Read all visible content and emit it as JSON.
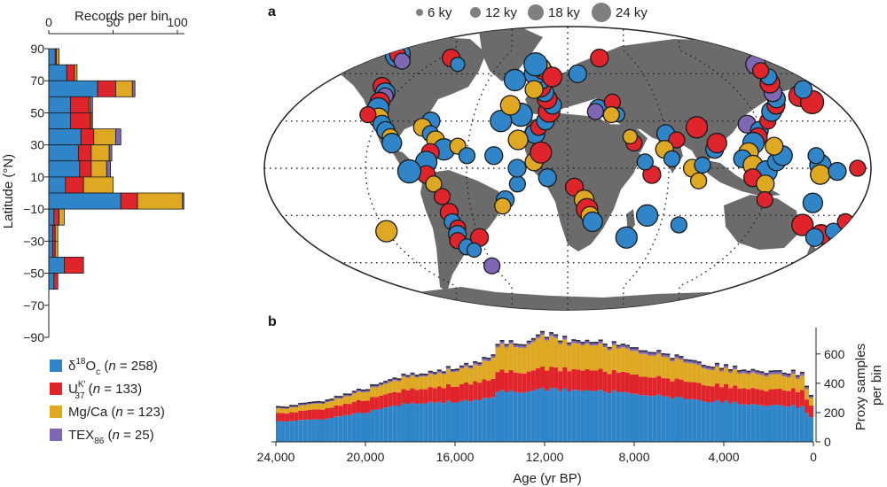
{
  "colors": {
    "d18O": "#2f85c8",
    "uk37": "#e0242b",
    "mgca": "#dfa822",
    "tex86": "#7f67b3",
    "land": "#6b6b6b"
  },
  "map_panel": {
    "label": "a",
    "size_legend": [
      {
        "label": "6 ky"
      },
      {
        "label": "12 ky"
      },
      {
        "label": "18 ky"
      },
      {
        "label": "24 ky"
      }
    ]
  },
  "ts_panel": {
    "label": "b"
  },
  "legend": [
    {
      "proxy": "d18O",
      "sym": "δ",
      "sup": "18",
      "main": "O",
      "sub": "c",
      "n": "258"
    },
    {
      "proxy": "uk37",
      "sym": "",
      "sup": "K′",
      "main": "U",
      "sub": "37",
      "n": "133"
    },
    {
      "proxy": "mgca",
      "sym": "",
      "sup": "",
      "main": "Mg/Ca",
      "sub": "",
      "n": "123"
    },
    {
      "proxy": "tex86",
      "sym": "",
      "sup": "",
      "main": "TEX",
      "sub": "86",
      "n": "25"
    }
  ],
  "legend_n_prefix": "n",
  "chart_data": [
    {
      "type": "bar",
      "orientation": "horizontal-stacked",
      "title": "",
      "xlabel": "Records per bin",
      "ylabel": "Latitude (°N)",
      "xlim": [
        0,
        105
      ],
      "xticks": [
        0,
        50,
        100
      ],
      "ylim": [
        -90,
        90
      ],
      "yticks": [
        90,
        70,
        50,
        30,
        10,
        -10,
        -30,
        -50,
        -70,
        -90
      ],
      "bin_lows": [
        80,
        70,
        60,
        50,
        40,
        30,
        20,
        10,
        0,
        -10,
        -20,
        -30,
        -40,
        -50,
        -60,
        -70,
        -80,
        -90
      ],
      "series": [
        {
          "name": "d18O",
          "values": [
            5,
            14,
            38,
            17,
            17,
            25,
            23,
            24,
            13,
            56,
            4,
            3,
            3,
            12,
            4,
            0,
            0,
            0
          ]
        },
        {
          "name": "uk37",
          "values": [
            1,
            6,
            14,
            14,
            15,
            10,
            10,
            9,
            14,
            13,
            4,
            2,
            2,
            15,
            3,
            0,
            0,
            0
          ]
        },
        {
          "name": "mgca",
          "values": [
            2,
            2,
            13,
            1,
            1,
            17,
            14,
            12,
            23,
            35,
            4,
            2,
            2,
            0,
            0,
            0,
            0,
            0
          ]
        },
        {
          "name": "tex86",
          "values": [
            0,
            0,
            2,
            2,
            1,
            4,
            2,
            3,
            0,
            1,
            0,
            0,
            0,
            0,
            0,
            0,
            0,
            0
          ]
        }
      ]
    },
    {
      "type": "area",
      "stacked": true,
      "title": "",
      "xlabel": "Age (yr BP)",
      "ylabel": "Proxy samples per bin",
      "xlim": [
        24000,
        0
      ],
      "xticks": [
        "24,000",
        "20,000",
        "16,000",
        "12,000",
        "8,000",
        "4,000",
        "0"
      ],
      "ylim": [
        0,
        780
      ],
      "yticks": [
        0,
        200,
        400,
        600
      ],
      "ages": [
        24000,
        23000,
        22000,
        21000,
        20000,
        19000,
        18000,
        17000,
        16000,
        15000,
        14500,
        14000,
        13000,
        12000,
        11000,
        10000,
        9000,
        8000,
        7000,
        6000,
        5000,
        4000,
        3000,
        2000,
        1000,
        500,
        0
      ],
      "series": [
        {
          "name": "d18O",
          "values": [
            140,
            145,
            155,
            180,
            200,
            240,
            260,
            270,
            275,
            280,
            305,
            340,
            340,
            360,
            355,
            345,
            340,
            325,
            315,
            300,
            285,
            275,
            260,
            245,
            245,
            240,
            150
          ]
        },
        {
          "name": "uk37",
          "values": [
            55,
            60,
            70,
            75,
            85,
            90,
            95,
            100,
            110,
            120,
            125,
            135,
            135,
            140,
            140,
            140,
            135,
            130,
            125,
            120,
            115,
            110,
            110,
            105,
            110,
            110,
            70
          ]
        },
        {
          "name": "mgca",
          "values": [
            30,
            35,
            40,
            50,
            60,
            75,
            85,
            90,
            105,
            110,
            135,
            170,
            175,
            215,
            180,
            170,
            165,
            160,
            150,
            135,
            120,
            110,
            105,
            100,
            95,
            95,
            40
          ]
        },
        {
          "name": "tex86",
          "values": [
            10,
            12,
            12,
            14,
            15,
            15,
            15,
            15,
            15,
            18,
            20,
            20,
            20,
            20,
            20,
            20,
            20,
            20,
            20,
            20,
            20,
            20,
            20,
            20,
            22,
            22,
            15
          ]
        }
      ]
    },
    {
      "type": "scatter",
      "projection": "robinson",
      "title": "",
      "marker_size": "record length (ky)",
      "markers": [
        [
          72,
          -168,
          "d18O",
          22
        ],
        [
          72,
          -168,
          "uk37",
          12
        ],
        [
          68,
          -150,
          "tex86",
          12
        ],
        [
          70,
          -110,
          "uk37",
          14
        ],
        [
          66,
          -96,
          "d18O",
          10
        ],
        [
          52,
          -135,
          "uk37",
          14
        ],
        [
          48,
          -128,
          "d18O",
          16
        ],
        [
          46,
          -126,
          "tex86",
          12
        ],
        [
          42,
          -126,
          "uk37",
          16
        ],
        [
          38,
          -124,
          "d18O",
          18
        ],
        [
          32,
          -120,
          "mgca",
          16
        ],
        [
          28,
          -116,
          "d18O",
          14
        ],
        [
          34,
          -128,
          "uk37",
          12
        ],
        [
          24,
          -112,
          "d18O",
          14
        ],
        [
          20,
          -108,
          "mgca",
          12
        ],
        [
          16,
          -106,
          "d18O",
          16
        ],
        [
          30,
          -86,
          "d18O",
          14
        ],
        [
          26,
          -90,
          "mgca",
          14
        ],
        [
          22,
          -84,
          "d18O",
          12
        ],
        [
          18,
          -80,
          "mgca",
          14
        ],
        [
          12,
          -74,
          "d18O",
          18
        ],
        [
          10,
          -82,
          "uk37",
          14
        ],
        [
          14,
          -66,
          "mgca",
          12
        ],
        [
          8,
          -60,
          "d18O",
          12
        ],
        [
          4,
          -84,
          "d18O",
          18
        ],
        [
          -4,
          -84,
          "uk37",
          14
        ],
        [
          -2,
          -94,
          "d18O",
          20
        ],
        [
          -10,
          -80,
          "mgca",
          12
        ],
        [
          -18,
          -76,
          "uk37",
          12
        ],
        [
          -28,
          -74,
          "uk37",
          14
        ],
        [
          -34,
          -74,
          "d18O",
          12
        ],
        [
          -38,
          -72,
          "uk37",
          12
        ],
        [
          -42,
          -74,
          "d18O",
          14
        ],
        [
          -46,
          -76,
          "uk37",
          12
        ],
        [
          -50,
          -72,
          "d18O",
          12
        ],
        [
          -44,
          -60,
          "uk37",
          14
        ],
        [
          -40,
          -120,
          "mgca",
          18
        ],
        [
          -62,
          -62,
          "tex86",
          12
        ],
        [
          -52,
          -68,
          "d18O",
          10
        ],
        [
          -10,
          -30,
          "d18O",
          12
        ],
        [
          -20,
          -38,
          "d18O",
          14
        ],
        [
          -24,
          -40,
          "mgca",
          12
        ],
        [
          0,
          -30,
          "d18O",
          14
        ],
        [
          4,
          -20,
          "mgca",
          14
        ],
        [
          8,
          -44,
          "d18O",
          14
        ],
        [
          22,
          -20,
          "d18O",
          16
        ],
        [
          26,
          -18,
          "uk37",
          12
        ],
        [
          30,
          -14,
          "d18O",
          14
        ],
        [
          36,
          -12,
          "uk37",
          18
        ],
        [
          40,
          -10,
          "d18O",
          14
        ],
        [
          44,
          -14,
          "uk37",
          16
        ],
        [
          48,
          -16,
          "d18O",
          14
        ],
        [
          52,
          -20,
          "uk37",
          18
        ],
        [
          56,
          -20,
          "d18O",
          14
        ],
        [
          60,
          -26,
          "d18O",
          18
        ],
        [
          62,
          -20,
          "uk37",
          14
        ],
        [
          64,
          -22,
          "mgca",
          14
        ],
        [
          66,
          -28,
          "d18O",
          20
        ],
        [
          58,
          -12,
          "uk37",
          16
        ],
        [
          50,
          -24,
          "mgca",
          14
        ],
        [
          34,
          -30,
          "d18O",
          20
        ],
        [
          30,
          -42,
          "d18O",
          18
        ],
        [
          40,
          -38,
          "mgca",
          16
        ],
        [
          56,
          -40,
          "d18O",
          18
        ],
        [
          18,
          -30,
          "mgca",
          16
        ],
        [
          10,
          -16,
          "uk37",
          18
        ],
        [
          -6,
          -12,
          "d18O",
          14
        ],
        [
          -12,
          4,
          "uk37",
          14
        ],
        [
          -20,
          10,
          "mgca",
          16
        ],
        [
          -26,
          12,
          "uk37",
          18
        ],
        [
          -30,
          14,
          "mgca",
          14
        ],
        [
          -34,
          16,
          "d18O",
          16
        ],
        [
          -44,
          40,
          "d18O",
          18
        ],
        [
          -30,
          50,
          "d18O",
          18
        ],
        [
          -36,
          72,
          "d18O",
          12
        ],
        [
          -4,
          50,
          "uk37",
          14
        ],
        [
          4,
          46,
          "d18O",
          12
        ],
        [
          16,
          40,
          "uk37",
          12
        ],
        [
          20,
          38,
          "mgca",
          10
        ],
        [
          22,
          60,
          "d18O",
          14
        ],
        [
          18,
          66,
          "uk37",
          12
        ],
        [
          12,
          58,
          "mgca",
          14
        ],
        [
          6,
          62,
          "d18O",
          12
        ],
        [
          0,
          74,
          "mgca",
          14
        ],
        [
          2,
          80,
          "d18O",
          12
        ],
        [
          -8,
          78,
          "mgca",
          12
        ],
        [
          12,
          88,
          "d18O",
          14
        ],
        [
          16,
          90,
          "uk37",
          16
        ],
        [
          26,
          80,
          "uk37",
          18
        ],
        [
          38,
          20,
          "d18O",
          14
        ],
        [
          42,
          30,
          "uk37",
          12
        ],
        [
          34,
          32,
          "d18O",
          10
        ],
        [
          36,
          18,
          "tex86",
          12
        ],
        [
          34,
          28,
          "mgca",
          12
        ],
        [
          70,
          30,
          "uk37",
          14
        ],
        [
          60,
          8,
          "d18O",
          14
        ],
        [
          28,
          112,
          "tex86",
          14
        ],
        [
          24,
          118,
          "d18O",
          14
        ],
        [
          20,
          116,
          "uk37",
          14
        ],
        [
          16,
          112,
          "d18O",
          18
        ],
        [
          10,
          108,
          "mgca",
          16
        ],
        [
          6,
          104,
          "d18O",
          14
        ],
        [
          2,
          110,
          "mgca",
          16
        ],
        [
          -2,
          118,
          "d18O",
          18
        ],
        [
          -6,
          110,
          "uk37",
          14
        ],
        [
          -10,
          118,
          "mgca",
          14
        ],
        [
          4,
          124,
          "d18O",
          14
        ],
        [
          8,
          128,
          "d18O",
          16
        ],
        [
          14,
          124,
          "mgca",
          14
        ],
        [
          30,
          126,
          "uk37",
          12
        ],
        [
          36,
          132,
          "d18O",
          16
        ],
        [
          40,
          138,
          "uk37",
          14
        ],
        [
          44,
          142,
          "d18O",
          14
        ],
        [
          48,
          144,
          "tex86",
          14
        ],
        [
          54,
          150,
          "uk37",
          16
        ],
        [
          58,
          156,
          "d18O",
          12
        ],
        [
          66,
          164,
          "tex86",
          16
        ],
        [
          62,
          158,
          "uk37",
          12
        ],
        [
          46,
          160,
          "uk37",
          18
        ],
        [
          42,
          164,
          "uk37",
          20
        ],
        [
          50,
          168,
          "d18O",
          14
        ],
        [
          2,
          150,
          "d18O",
          18
        ],
        [
          -4,
          150,
          "mgca",
          16
        ],
        [
          -2,
          160,
          "d18O",
          14
        ],
        [
          8,
          148,
          "d18O",
          12
        ],
        [
          0,
          172,
          "uk37",
          12
        ],
        [
          -22,
          150,
          "d18O",
          16
        ],
        [
          -36,
          152,
          "uk37",
          18
        ],
        [
          -42,
          170,
          "uk37",
          16
        ],
        [
          -40,
          176,
          "d18O",
          12
        ],
        [
          -34,
          178,
          "uk37",
          12
        ],
        [
          -44,
          168,
          "d18O",
          14
        ],
        [
          -20,
          120,
          "uk37",
          12
        ]
      ]
    }
  ]
}
